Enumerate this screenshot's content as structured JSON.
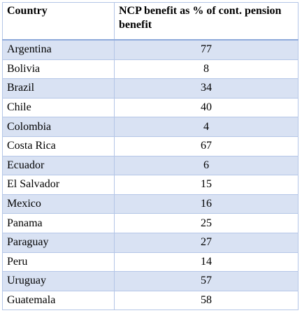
{
  "table": {
    "header": [
      "Country",
      "NCP benefit as % of cont. pension benefit"
    ],
    "rows": [
      [
        "Argentina",
        77
      ],
      [
        "Bolivia",
        8
      ],
      [
        "Brazil",
        34
      ],
      [
        "Chile",
        40
      ],
      [
        "Colombia",
        4
      ],
      [
        "Costa Rica",
        67
      ],
      [
        "Ecuador",
        6
      ],
      [
        "El Salvador",
        15
      ],
      [
        "Mexico",
        16
      ],
      [
        "Panama",
        25
      ],
      [
        "Paraguay",
        27
      ],
      [
        "Peru",
        14
      ],
      [
        "Uruguay",
        57
      ],
      [
        "Guatemala",
        58
      ]
    ]
  }
}
